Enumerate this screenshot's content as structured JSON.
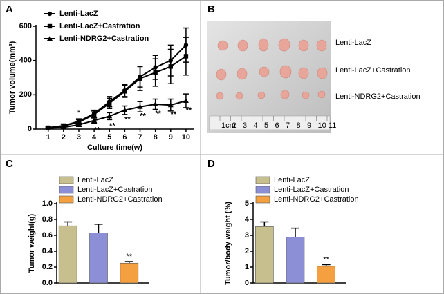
{
  "chart_data": [
    {
      "type": "line",
      "panel": "A",
      "xlabel": "Culture time(w)",
      "ylabel": "Tumor volume(mm³)",
      "x": [
        1,
        2,
        3,
        4,
        5,
        6,
        7,
        8,
        9,
        10
      ],
      "xlim": [
        0.2,
        10.5
      ],
      "xticks": [
        1,
        2,
        3,
        4,
        5,
        6,
        7,
        8,
        9,
        10
      ],
      "ylim": [
        0,
        600
      ],
      "yticks": [
        0,
        200,
        400,
        600
      ],
      "series": [
        {
          "name": "Lenti-LacZ",
          "color": "#000000",
          "marker": "circle",
          "values": [
            8,
            20,
            45,
            90,
            160,
            225,
            305,
            360,
            400,
            490
          ],
          "errors": [
            5,
            10,
            15,
            20,
            30,
            35,
            60,
            70,
            90,
            100
          ]
        },
        {
          "name": "Lenti-LacZ+Castration",
          "color": "#000000",
          "marker": "square",
          "values": [
            8,
            18,
            40,
            85,
            150,
            220,
            295,
            330,
            365,
            425
          ],
          "errors": [
            5,
            10,
            15,
            20,
            30,
            35,
            70,
            80,
            100,
            110
          ]
        },
        {
          "name": "Lenti-NDRG2+Castration",
          "color": "#000000",
          "marker": "triangle",
          "values": [
            5,
            10,
            25,
            50,
            75,
            110,
            130,
            145,
            140,
            165
          ],
          "errors": [
            3,
            5,
            10,
            15,
            20,
            25,
            30,
            30,
            35,
            40
          ]
        }
      ],
      "annotations": [
        {
          "text": "*",
          "x": 3
        },
        {
          "text": "**",
          "x": 4
        },
        {
          "text": "**",
          "x": 5
        },
        {
          "text": "**",
          "x": 6
        },
        {
          "text": "**",
          "x": 7
        },
        {
          "text": "**",
          "x": 8
        },
        {
          "text": "**",
          "x": 9
        },
        {
          "text": "**",
          "x": 10
        }
      ]
    },
    {
      "type": "bar",
      "panel": "C",
      "ylabel": "Tumor weight(g)",
      "categories": [
        "Lenti-LacZ",
        "Lenti-LacZ+Castration",
        "Lenti-NDRG2+Castration"
      ],
      "values": [
        0.72,
        0.63,
        0.25
      ],
      "errors": [
        0.05,
        0.11,
        0.02
      ],
      "colors": [
        "#c8bf8f",
        "#8c8fd6",
        "#f5a040"
      ],
      "ylim": [
        0,
        1
      ],
      "yticks": [
        {
          "value": 0,
          "label": "0.0"
        },
        0.2,
        0.4,
        0.6,
        0.8,
        {
          "value": 1,
          "label": "1.0"
        }
      ],
      "annotations": [
        {
          "text": "**",
          "index": 2
        }
      ]
    },
    {
      "type": "bar",
      "panel": "D",
      "ylabel": "Tumor/body weight (%)",
      "categories": [
        "Lenti-LacZ",
        "Lenti-LacZ+Castration",
        "Lenti-NDRG2+Castration"
      ],
      "values": [
        3.55,
        2.9,
        1.05
      ],
      "errors": [
        0.3,
        0.55,
        0.1
      ],
      "colors": [
        "#c8bf8f",
        "#8c8fd6",
        "#f5a040"
      ],
      "ylim": [
        0,
        5
      ],
      "yticks": [
        0,
        1,
        2,
        3,
        4,
        5
      ],
      "annotations": [
        {
          "text": "**",
          "index": 2
        }
      ]
    }
  ],
  "photo": {
    "panel": "B",
    "labels": [
      "Lenti-LacZ",
      "Lenti-LacZ+Castration",
      "Lenti-NDRG2+Castration"
    ],
    "ruler": [
      "1cm",
      "2",
      "3",
      "4",
      "5",
      "6",
      "7",
      "8",
      "9",
      "10",
      "11"
    ]
  }
}
